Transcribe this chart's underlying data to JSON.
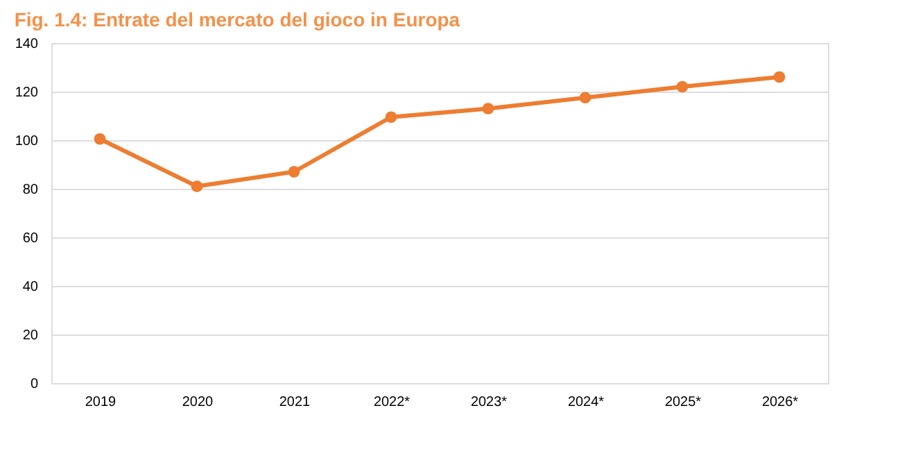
{
  "chart_data": {
    "type": "line",
    "title": "Fig. 1.4: Entrate del mercato del gioco in Europa",
    "categories": [
      "2019",
      "2020",
      "2021",
      "2022*",
      "2023*",
      "2024*",
      "2025*",
      "2026*"
    ],
    "series": [
      {
        "color": "#ed7d31",
        "values": [
          100.5,
          81,
          87,
          109.5,
          113,
          117.5,
          122,
          126
        ]
      }
    ],
    "ylim": [
      0,
      140
    ],
    "yticks": [
      0,
      20,
      40,
      60,
      80,
      100,
      120,
      140
    ],
    "grid": "y",
    "marker": "circle",
    "line_style": "solid",
    "legend": false
  }
}
